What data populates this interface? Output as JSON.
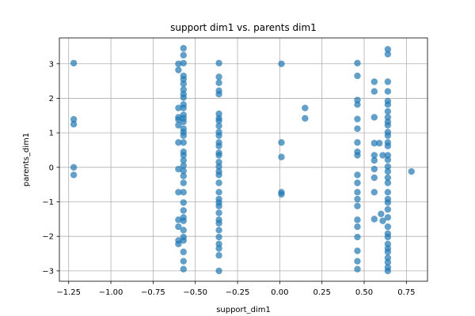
{
  "chart_data": {
    "type": "scatter",
    "title": "support dim1 vs. parents dim1",
    "xlabel": "support_dim1",
    "ylabel": "parents_dim1",
    "xlim": [
      -1.305,
      0.875
    ],
    "ylim": [
      -3.3,
      3.75
    ],
    "x_ticks": [
      -1.25,
      -1.0,
      -0.75,
      -0.5,
      -0.25,
      0.0,
      0.25,
      0.5,
      0.75
    ],
    "x_tick_labels": [
      "−1.25",
      "−1.00",
      "−0.75",
      "−0.50",
      "−0.25",
      "0.00",
      "0.25",
      "0.50",
      "0.75"
    ],
    "y_ticks": [
      -3,
      -2,
      -1,
      0,
      1,
      2,
      3
    ],
    "y_tick_labels": [
      "−3",
      "−2",
      "−1",
      "0",
      "1",
      "2",
      "3"
    ],
    "grid": true,
    "marker_color": "#1f77b4",
    "marker_alpha": 0.7,
    "points": [
      {
        "x": -1.22,
        "y": 3.02
      },
      {
        "x": -1.22,
        "y": 1.39
      },
      {
        "x": -1.22,
        "y": 1.25
      },
      {
        "x": -1.22,
        "y": 0.0
      },
      {
        "x": -1.22,
        "y": -0.22
      },
      {
        "x": -0.6,
        "y": 3.0
      },
      {
        "x": -0.6,
        "y": 2.82
      },
      {
        "x": -0.6,
        "y": 1.72
      },
      {
        "x": -0.6,
        "y": 1.45
      },
      {
        "x": -0.6,
        "y": 1.38
      },
      {
        "x": -0.6,
        "y": 1.22
      },
      {
        "x": -0.6,
        "y": 0.72
      },
      {
        "x": -0.6,
        "y": -0.05
      },
      {
        "x": -0.6,
        "y": -0.72
      },
      {
        "x": -0.6,
        "y": -1.52
      },
      {
        "x": -0.6,
        "y": -1.72
      },
      {
        "x": -0.6,
        "y": -2.12
      },
      {
        "x": -0.6,
        "y": -2.22
      },
      {
        "x": -0.57,
        "y": 3.45
      },
      {
        "x": -0.57,
        "y": 3.25
      },
      {
        "x": -0.57,
        "y": 3.02
      },
      {
        "x": -0.57,
        "y": 2.65
      },
      {
        "x": -0.57,
        "y": 2.55
      },
      {
        "x": -0.57,
        "y": 2.42
      },
      {
        "x": -0.57,
        "y": 2.25
      },
      {
        "x": -0.57,
        "y": 2.12
      },
      {
        "x": -0.57,
        "y": 2.02
      },
      {
        "x": -0.57,
        "y": 1.82
      },
      {
        "x": -0.57,
        "y": 1.72
      },
      {
        "x": -0.57,
        "y": 1.52
      },
      {
        "x": -0.57,
        "y": 1.42
      },
      {
        "x": -0.57,
        "y": 1.32
      },
      {
        "x": -0.57,
        "y": 1.12
      },
      {
        "x": -0.57,
        "y": 1.02
      },
      {
        "x": -0.57,
        "y": 0.92
      },
      {
        "x": -0.57,
        "y": 0.72
      },
      {
        "x": -0.57,
        "y": 0.45
      },
      {
        "x": -0.57,
        "y": 0.35
      },
      {
        "x": -0.57,
        "y": 0.2
      },
      {
        "x": -0.57,
        "y": 0.05
      },
      {
        "x": -0.57,
        "y": -0.1
      },
      {
        "x": -0.57,
        "y": -0.25
      },
      {
        "x": -0.57,
        "y": -0.45
      },
      {
        "x": -0.57,
        "y": -0.72
      },
      {
        "x": -0.57,
        "y": -1.02
      },
      {
        "x": -0.57,
        "y": -1.25
      },
      {
        "x": -0.57,
        "y": -1.45
      },
      {
        "x": -0.57,
        "y": -1.55
      },
      {
        "x": -0.57,
        "y": -1.82
      },
      {
        "x": -0.57,
        "y": -2.02
      },
      {
        "x": -0.57,
        "y": -2.12
      },
      {
        "x": -0.57,
        "y": -2.45
      },
      {
        "x": -0.57,
        "y": -2.72
      },
      {
        "x": -0.57,
        "y": -2.95
      },
      {
        "x": -0.36,
        "y": 3.02
      },
      {
        "x": -0.36,
        "y": 2.62
      },
      {
        "x": -0.36,
        "y": 2.45
      },
      {
        "x": -0.36,
        "y": 2.22
      },
      {
        "x": -0.36,
        "y": 2.12
      },
      {
        "x": -0.36,
        "y": 1.55
      },
      {
        "x": -0.36,
        "y": 1.42
      },
      {
        "x": -0.36,
        "y": 1.35
      },
      {
        "x": -0.36,
        "y": 1.2
      },
      {
        "x": -0.36,
        "y": 1.02
      },
      {
        "x": -0.36,
        "y": 0.92
      },
      {
        "x": -0.36,
        "y": 0.72
      },
      {
        "x": -0.36,
        "y": 0.62
      },
      {
        "x": -0.36,
        "y": 0.42
      },
      {
        "x": -0.36,
        "y": 0.35
      },
      {
        "x": -0.36,
        "y": 0.15
      },
      {
        "x": -0.36,
        "y": 0.02
      },
      {
        "x": -0.36,
        "y": -0.12
      },
      {
        "x": -0.36,
        "y": -0.22
      },
      {
        "x": -0.36,
        "y": -0.45
      },
      {
        "x": -0.36,
        "y": -0.72
      },
      {
        "x": -0.36,
        "y": -0.92
      },
      {
        "x": -0.36,
        "y": -1.02
      },
      {
        "x": -0.36,
        "y": -1.12
      },
      {
        "x": -0.36,
        "y": -1.32
      },
      {
        "x": -0.36,
        "y": -1.52
      },
      {
        "x": -0.36,
        "y": -1.62
      },
      {
        "x": -0.36,
        "y": -1.82
      },
      {
        "x": -0.36,
        "y": -2.02
      },
      {
        "x": -0.36,
        "y": -2.22
      },
      {
        "x": -0.36,
        "y": -2.35
      },
      {
        "x": -0.36,
        "y": -2.55
      },
      {
        "x": -0.36,
        "y": -3.0
      },
      {
        "x": 0.01,
        "y": 3.0
      },
      {
        "x": 0.01,
        "y": 0.72
      },
      {
        "x": 0.01,
        "y": 0.3
      },
      {
        "x": 0.01,
        "y": -0.72
      },
      {
        "x": 0.01,
        "y": -0.78
      },
      {
        "x": 0.15,
        "y": 1.72
      },
      {
        "x": 0.15,
        "y": 1.42
      },
      {
        "x": 0.46,
        "y": 3.02
      },
      {
        "x": 0.46,
        "y": 2.65
      },
      {
        "x": 0.46,
        "y": 1.95
      },
      {
        "x": 0.46,
        "y": 1.82
      },
      {
        "x": 0.46,
        "y": 1.4
      },
      {
        "x": 0.46,
        "y": 1.12
      },
      {
        "x": 0.46,
        "y": 0.72
      },
      {
        "x": 0.46,
        "y": 0.45
      },
      {
        "x": 0.46,
        "y": 0.35
      },
      {
        "x": 0.46,
        "y": -0.22
      },
      {
        "x": 0.46,
        "y": -0.45
      },
      {
        "x": 0.46,
        "y": -0.72
      },
      {
        "x": 0.46,
        "y": -0.92
      },
      {
        "x": 0.46,
        "y": -1.12
      },
      {
        "x": 0.46,
        "y": -1.52
      },
      {
        "x": 0.46,
        "y": -1.72
      },
      {
        "x": 0.46,
        "y": -2.02
      },
      {
        "x": 0.46,
        "y": -2.42
      },
      {
        "x": 0.46,
        "y": -2.72
      },
      {
        "x": 0.46,
        "y": -2.95
      },
      {
        "x": 0.56,
        "y": 2.48
      },
      {
        "x": 0.56,
        "y": 2.2
      },
      {
        "x": 0.56,
        "y": 1.45
      },
      {
        "x": 0.56,
        "y": 0.7
      },
      {
        "x": 0.56,
        "y": 0.35
      },
      {
        "x": 0.56,
        "y": 0.2
      },
      {
        "x": 0.56,
        "y": -0.05
      },
      {
        "x": 0.56,
        "y": -0.3
      },
      {
        "x": 0.56,
        "y": -0.72
      },
      {
        "x": 0.56,
        "y": -1.5
      },
      {
        "x": 0.59,
        "y": 0.7
      },
      {
        "x": 0.6,
        "y": -1.35
      },
      {
        "x": 0.61,
        "y": -1.55
      },
      {
        "x": 0.61,
        "y": 0.35
      },
      {
        "x": 0.64,
        "y": 3.42
      },
      {
        "x": 0.64,
        "y": 3.28
      },
      {
        "x": 0.64,
        "y": 2.48
      },
      {
        "x": 0.64,
        "y": 2.2
      },
      {
        "x": 0.64,
        "y": 1.92
      },
      {
        "x": 0.64,
        "y": 1.82
      },
      {
        "x": 0.64,
        "y": 1.62
      },
      {
        "x": 0.64,
        "y": 1.45
      },
      {
        "x": 0.64,
        "y": 1.32
      },
      {
        "x": 0.64,
        "y": 1.22
      },
      {
        "x": 0.64,
        "y": 1.02
      },
      {
        "x": 0.64,
        "y": 0.92
      },
      {
        "x": 0.64,
        "y": 0.72
      },
      {
        "x": 0.64,
        "y": 0.62
      },
      {
        "x": 0.64,
        "y": 0.35
      },
      {
        "x": 0.64,
        "y": 0.22
      },
      {
        "x": 0.64,
        "y": 0.02
      },
      {
        "x": 0.64,
        "y": -0.12
      },
      {
        "x": 0.64,
        "y": -0.3
      },
      {
        "x": 0.64,
        "y": -0.45
      },
      {
        "x": 0.64,
        "y": -0.72
      },
      {
        "x": 0.64,
        "y": -0.92
      },
      {
        "x": 0.64,
        "y": -1.02
      },
      {
        "x": 0.64,
        "y": -1.22
      },
      {
        "x": 0.64,
        "y": -1.45
      },
      {
        "x": 0.64,
        "y": -1.72
      },
      {
        "x": 0.64,
        "y": -1.92
      },
      {
        "x": 0.64,
        "y": -2.02
      },
      {
        "x": 0.64,
        "y": -2.22
      },
      {
        "x": 0.64,
        "y": -2.35
      },
      {
        "x": 0.64,
        "y": -2.45
      },
      {
        "x": 0.64,
        "y": -2.62
      },
      {
        "x": 0.64,
        "y": -2.75
      },
      {
        "x": 0.64,
        "y": -2.9
      },
      {
        "x": 0.64,
        "y": -3.0
      },
      {
        "x": 0.78,
        "y": -0.12
      }
    ]
  }
}
